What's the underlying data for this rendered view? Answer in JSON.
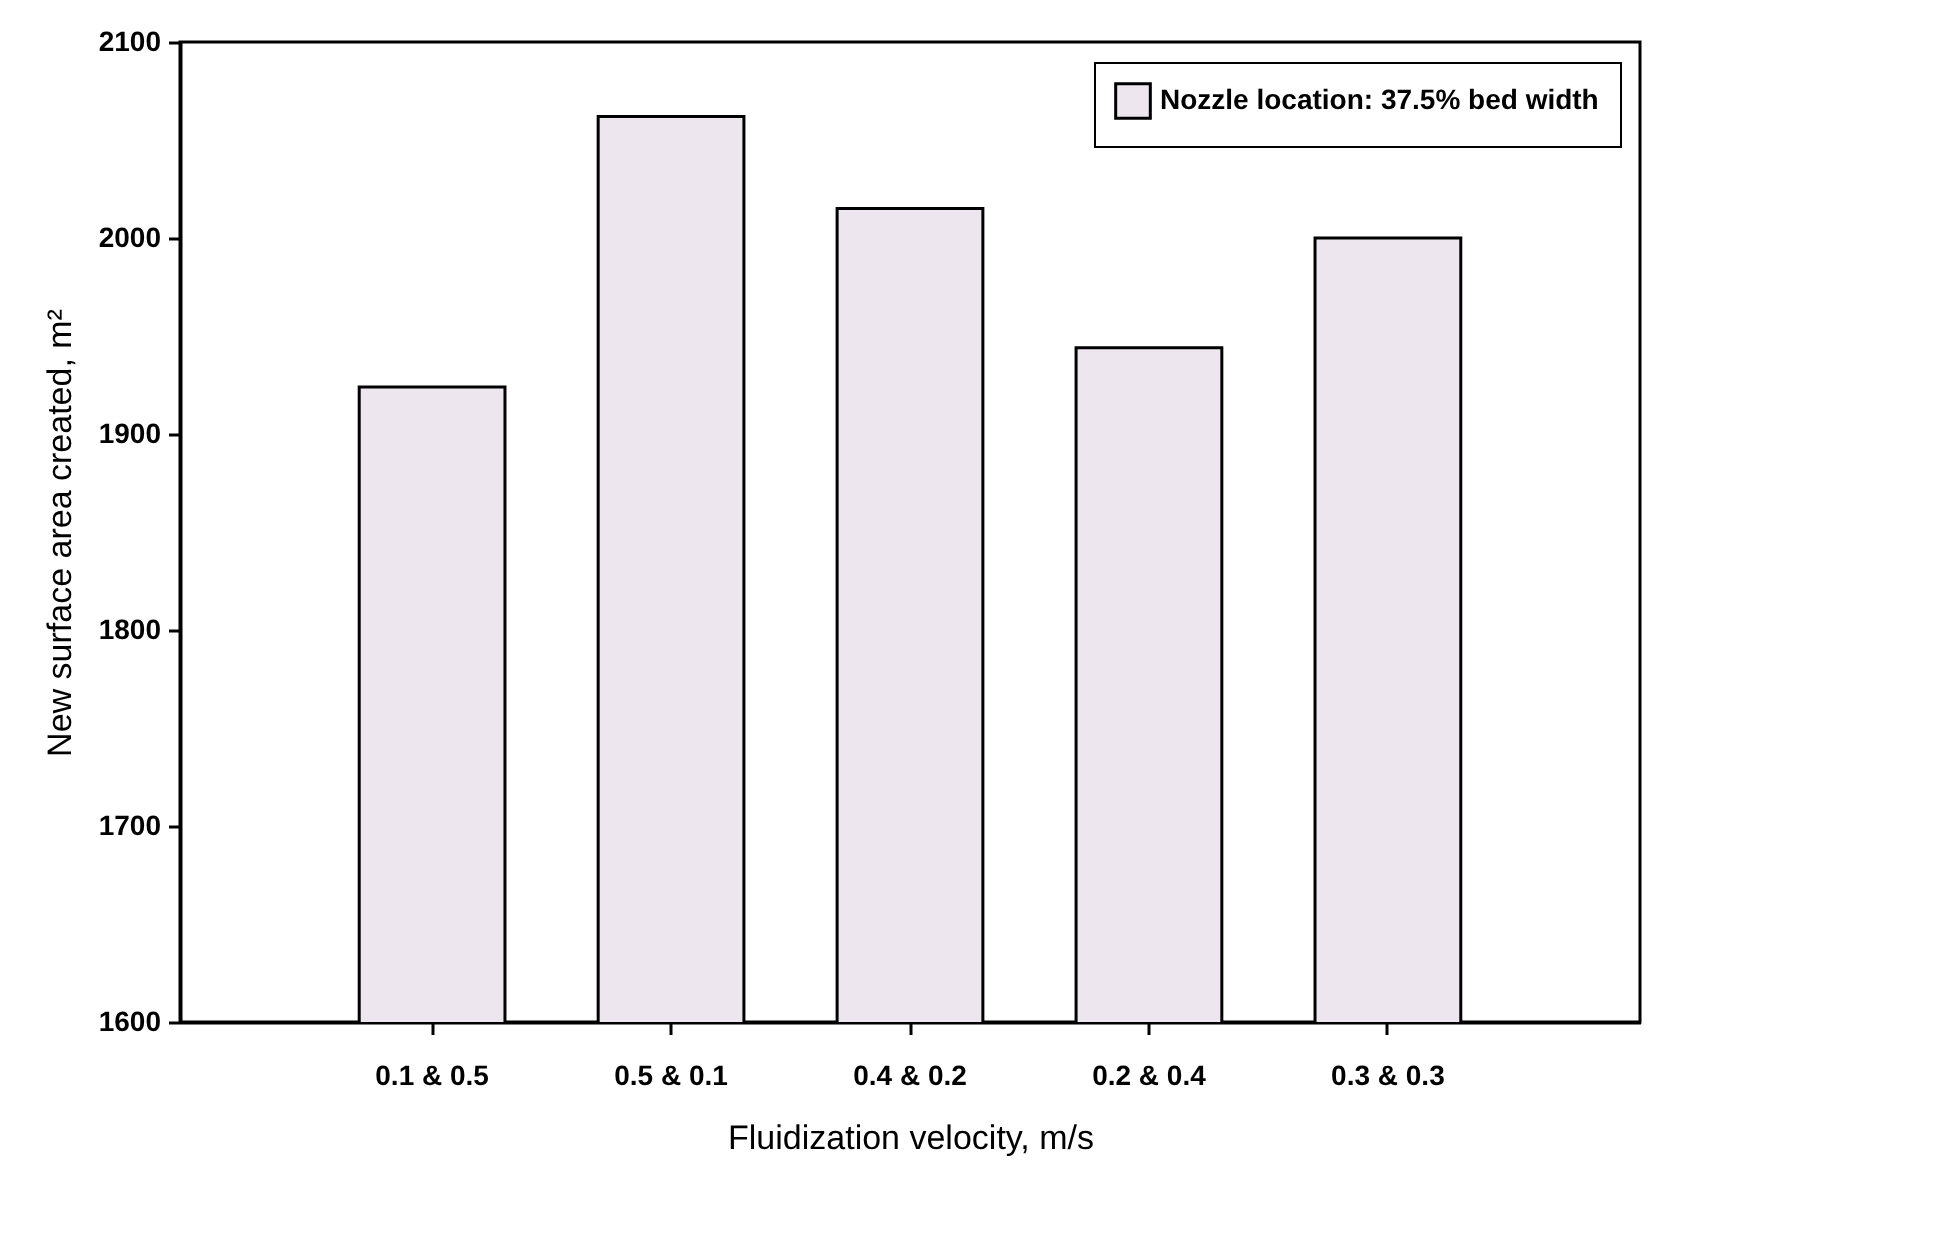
{
  "chart_data": {
    "type": "bar",
    "xlabel": "Fluidization velocity, m/s",
    "ylabel": "New surface area created, m²",
    "categories": [
      "0.1 & 0.5",
      "0.5 & 0.1",
      "0.4 & 0.2",
      "0.2 & 0.4",
      "0.3 & 0.3"
    ],
    "series": [
      {
        "name": "Nozzle location: 37.5% bed width",
        "color": "#ede6ef",
        "values": [
          1924,
          2062,
          2015,
          1944,
          2000
        ]
      }
    ],
    "ylim": [
      1600,
      2100
    ],
    "yticks": [
      1600,
      1700,
      1800,
      1900,
      2000,
      2100
    ],
    "grid": false,
    "legend": "top right"
  }
}
